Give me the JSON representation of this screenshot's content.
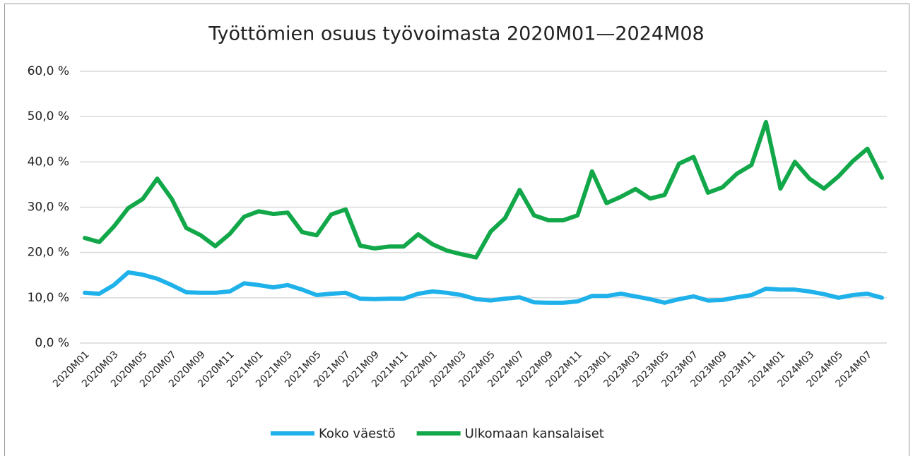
{
  "chart_data": {
    "type": "line",
    "title": "Työttömien osuus työvoimasta 2020M01—2024M08",
    "categories": [
      "2020M01",
      null,
      "2020M03",
      null,
      "2020M05",
      null,
      "2020M07",
      null,
      "2020M09",
      null,
      "2020M11",
      null,
      "2021M01",
      null,
      "2021M03",
      null,
      "2021M05",
      null,
      "2021M07",
      null,
      "2021M09",
      null,
      "2021M11",
      null,
      "2022M01",
      null,
      "2022M03",
      null,
      "2022M05",
      null,
      "2022M07",
      null,
      "2022M09",
      null,
      "2022M11",
      null,
      "2023M01",
      null,
      "2023M03",
      null,
      "2023M05",
      null,
      "2023M07",
      null,
      "2023M09",
      null,
      "2023M11",
      null,
      "2024M01",
      null,
      "2024M03",
      null,
      "2024M05",
      null,
      "2024M07",
      null
    ],
    "series": [
      {
        "name": "Koko väestö",
        "color": "#1fb1ea",
        "values": [
          11.1,
          10.9,
          12.8,
          15.6,
          15.1,
          14.2,
          12.8,
          11.2,
          11.1,
          11.1,
          11.4,
          13.2,
          12.8,
          12.3,
          12.8,
          11.8,
          10.6,
          10.9,
          11.1,
          9.8,
          9.7,
          9.8,
          9.8,
          10.9,
          11.4,
          11.1,
          10.6,
          9.7,
          9.4,
          9.8,
          10.1,
          9.0,
          8.9,
          8.9,
          9.2,
          10.4,
          10.4,
          10.9,
          10.3,
          9.7,
          8.9,
          9.7,
          10.3,
          9.4,
          9.5,
          10.1,
          10.6,
          12.0,
          11.8,
          11.8,
          11.4,
          10.8,
          10.0,
          10.6,
          10.9,
          10.0
        ]
      },
      {
        "name": "Ulkomaan kansalaiset",
        "color": "#12a84a",
        "values": [
          23.2,
          22.3,
          25.7,
          29.8,
          31.8,
          36.3,
          31.8,
          25.4,
          23.8,
          21.4,
          24.1,
          27.9,
          29.1,
          28.5,
          28.8,
          24.5,
          23.8,
          28.4,
          29.5,
          21.5,
          20.9,
          21.3,
          21.3,
          24.0,
          21.8,
          20.4,
          19.6,
          18.9,
          24.6,
          27.6,
          33.8,
          28.2,
          27.1,
          27.1,
          28.2,
          37.9,
          30.9,
          32.3,
          34.0,
          31.9,
          32.7,
          39.6,
          41.1,
          33.2,
          34.4,
          37.4,
          39.3,
          48.8,
          34.1,
          40.0,
          36.3,
          34.1,
          36.8,
          40.2,
          42.9,
          36.5
        ]
      }
    ],
    "ylim": [
      0,
      60
    ],
    "yticks": [
      {
        "value": 0,
        "label": "0,0 %"
      },
      {
        "value": 10,
        "label": "10,0 %"
      },
      {
        "value": 20,
        "label": "20,0 %"
      },
      {
        "value": 30,
        "label": "30,0 %"
      },
      {
        "value": 40,
        "label": "40,0 %"
      },
      {
        "value": 50,
        "label": "50,0 %"
      },
      {
        "value": 60,
        "label": "60,0 %"
      }
    ],
    "grid": true,
    "legend": "bottom"
  }
}
